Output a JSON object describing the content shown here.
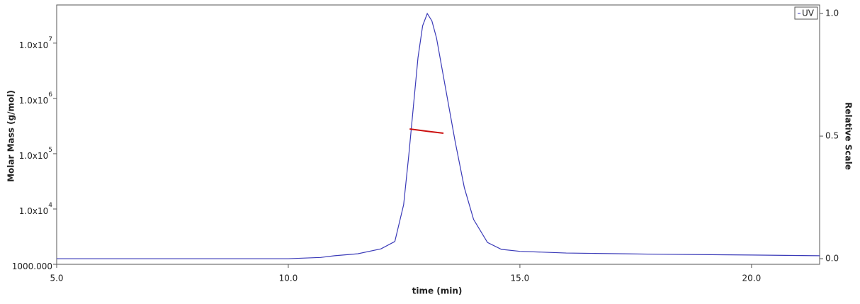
{
  "chart_data": {
    "type": "line",
    "xlabel": "time (min)",
    "ylabel": "Molar Mass (g/mol)",
    "y2label": "Relative Scale",
    "xlim": [
      5,
      21.47
    ],
    "xticks": [
      {
        "value": 5,
        "label": "5.0"
      },
      {
        "value": 10,
        "label": "10.0"
      },
      {
        "value": 15,
        "label": "15.0"
      },
      {
        "value": 20,
        "label": "20.0"
      }
    ],
    "ylim": [
      1000,
      49000000
    ],
    "ylog": true,
    "yticks": [
      {
        "value": 1000,
        "label": "1000.000"
      },
      {
        "value": 10000,
        "label": "1.0x10",
        "sup": "4"
      },
      {
        "value": 100000,
        "label": "1.0x10",
        "sup": "5"
      },
      {
        "value": 1000000,
        "label": "1.0x10",
        "sup": "6"
      },
      {
        "value": 10000000,
        "label": "1.0x10",
        "sup": "7"
      }
    ],
    "y2lim": [
      -0.023,
      1.035
    ],
    "y2ticks": [
      {
        "value": 0,
        "label": "0.0"
      },
      {
        "value": 0.5,
        "label": "0.5"
      },
      {
        "value": 1,
        "label": "1.0"
      }
    ],
    "legend": "upper right",
    "series": [
      {
        "name": "UV",
        "color": "#3a3ab8",
        "axis": "y2",
        "x": [
          5.0,
          10.0,
          10.7,
          11.0,
          11.5,
          12.0,
          12.3,
          12.49,
          12.6,
          12.7,
          12.8,
          12.9,
          13.0,
          13.1,
          13.2,
          13.4,
          13.6,
          13.8,
          14.0,
          14.3,
          14.6,
          15.0,
          16.0,
          18.0,
          20.0,
          21.47
        ],
        "values": [
          0.0,
          0.0,
          0.005,
          0.012,
          0.02,
          0.04,
          0.07,
          0.22,
          0.42,
          0.62,
          0.82,
          0.95,
          1.0,
          0.97,
          0.9,
          0.69,
          0.48,
          0.29,
          0.16,
          0.066,
          0.038,
          0.03,
          0.023,
          0.018,
          0.015,
          0.012
        ]
      },
      {
        "color": "#cc1111",
        "axis": "y",
        "x": [
          12.62,
          13.0,
          13.35
        ],
        "values": [
          280000,
          255000,
          235000
        ]
      }
    ]
  }
}
